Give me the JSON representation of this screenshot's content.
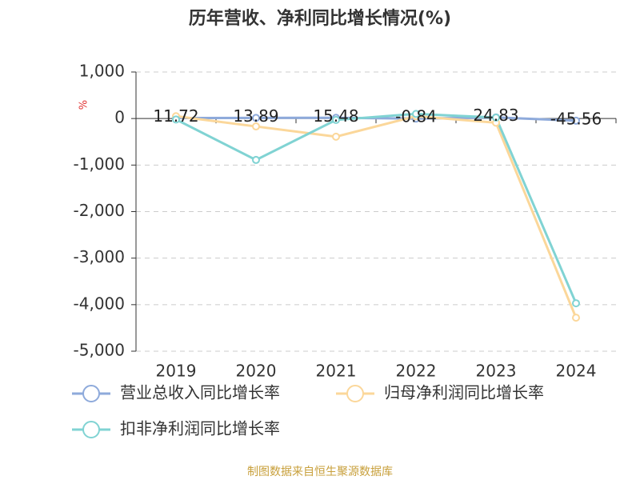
{
  "chart_data": {
    "type": "line",
    "title": "历年营收、净利同比增长情况(%)",
    "y_label": "%",
    "categories": [
      "2019",
      "2020",
      "2021",
      "2022",
      "2023",
      "2024"
    ],
    "series": [
      {
        "name": "营业总收入同比增长率",
        "color": "#8eaadb",
        "values": [
          11.72,
          13.89,
          15.48,
          -0.84,
          24.83,
          -45.56
        ],
        "labels": true
      },
      {
        "name": "归母净利润同比增长率",
        "color": "#fbd79a",
        "values": [
          50,
          -170,
          -390,
          50,
          -90,
          -4280
        ]
      },
      {
        "name": "扣非净利润同比增长率",
        "color": "#80d3d3",
        "values": [
          -20,
          -890,
          -30,
          100,
          20,
          -3970
        ]
      }
    ],
    "ylim": [
      -5000,
      1000
    ],
    "yticks": [
      {
        "value": -5000,
        "label": "-5,000"
      },
      {
        "value": -4000,
        "label": "-4,000"
      },
      {
        "value": -3000,
        "label": "-3,000"
      },
      {
        "value": -2000,
        "label": "-2,000"
      },
      {
        "value": -1000,
        "label": "-1,000"
      },
      0,
      {
        "value": 1000,
        "label": "1,000"
      }
    ],
    "grid": true,
    "source": "制图数据来自恒生聚源数据库"
  }
}
